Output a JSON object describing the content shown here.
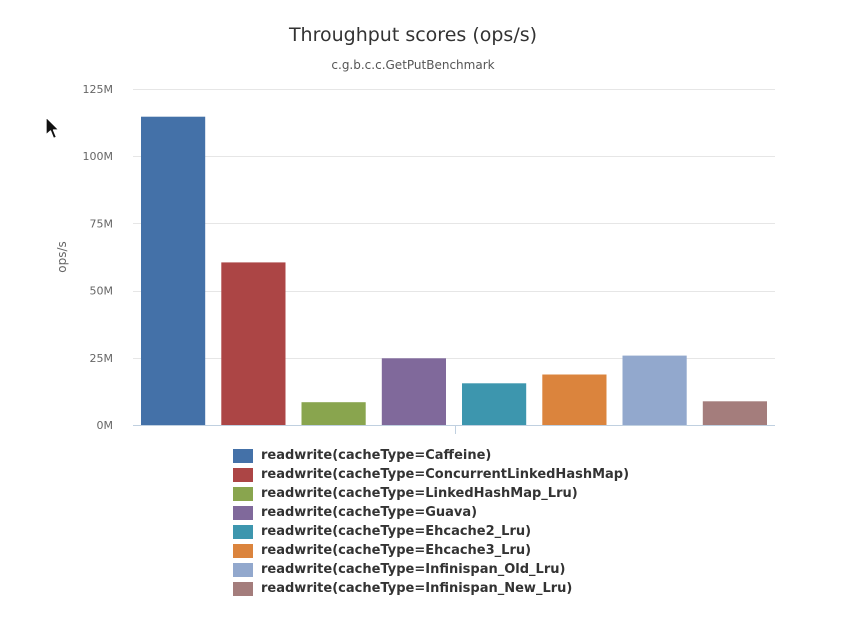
{
  "chart_data": {
    "type": "bar",
    "title": "Throughput scores (ops/s)",
    "subtitle": "c.g.b.c.c.GetPutBenchmark",
    "ylabel": "ops/s",
    "xlabel": "",
    "ylim": [
      0,
      125000000
    ],
    "yticks": [
      {
        "value": 0,
        "label": "0M"
      },
      {
        "value": 25000000,
        "label": "25M"
      },
      {
        "value": 50000000,
        "label": "50M"
      },
      {
        "value": 75000000,
        "label": "75M"
      },
      {
        "value": 100000000,
        "label": "100M"
      },
      {
        "value": 125000000,
        "label": "125M"
      }
    ],
    "grid": true,
    "legend_position": "bottom",
    "series": [
      {
        "name": "readwrite(cacheType=Caffeine)",
        "value": 114700000,
        "color": "#4471a8"
      },
      {
        "name": "readwrite(cacheType=ConcurrentLinkedHashMap)",
        "value": 60500000,
        "color": "#ac4545"
      },
      {
        "name": "readwrite(cacheType=LinkedHashMap_Lru)",
        "value": 8500000,
        "color": "#89a54e"
      },
      {
        "name": "readwrite(cacheType=Guava)",
        "value": 24800000,
        "color": "#80699b"
      },
      {
        "name": "readwrite(cacheType=Ehcache2_Lru)",
        "value": 15500000,
        "color": "#3d96ae"
      },
      {
        "name": "readwrite(cacheType=Ehcache3_Lru)",
        "value": 18800000,
        "color": "#db843d"
      },
      {
        "name": "readwrite(cacheType=Infinispan_Old_Lru)",
        "value": 25800000,
        "color": "#92a8cd"
      },
      {
        "name": "readwrite(cacheType=Infinispan_New_Lru)",
        "value": 8800000,
        "color": "#a47d7c"
      }
    ]
  },
  "icons": {
    "cursor": "mouse-pointer-icon"
  }
}
